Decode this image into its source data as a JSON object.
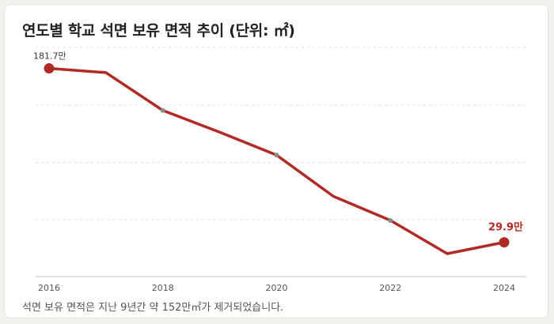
{
  "title": "연도별 학교 석면 보유 면적 추이 (단위: ㎡)",
  "caption": "석면 보유 면적은 지난 9년간 약 152만㎡가 제거되었습니다.",
  "colors": {
    "line": "#b22a25",
    "marker_minor": "#8a8a8a",
    "grid": "#e0e0e0",
    "axis": "#cfcfcf",
    "tick_text": "#555555",
    "title": "#222222"
  },
  "chart_data": {
    "type": "line",
    "title": "연도별 학교 석면 보유 면적 추이 (단위: ㎡)",
    "xlabel": "",
    "ylabel": "",
    "unit": "㎡",
    "x": [
      2016,
      2017,
      2018,
      2019,
      2020,
      2021,
      2022,
      2023,
      2024
    ],
    "y": [
      1817000,
      1780000,
      1450000,
      1260000,
      1060000,
      700000,
      490000,
      200000,
      299000
    ],
    "x_ticks": [
      2016,
      2018,
      2020,
      2022,
      2024
    ],
    "ylim": [
      0,
      2000000
    ],
    "grid": "horizontal dashed",
    "legend": "none",
    "data_labels": [
      {
        "x": 2016,
        "text": "181.7만",
        "style": "normal"
      },
      {
        "x": 2024,
        "text": "29.9만",
        "style": "bold-accent"
      }
    ],
    "emphasized_points": [
      2016,
      2024
    ]
  }
}
